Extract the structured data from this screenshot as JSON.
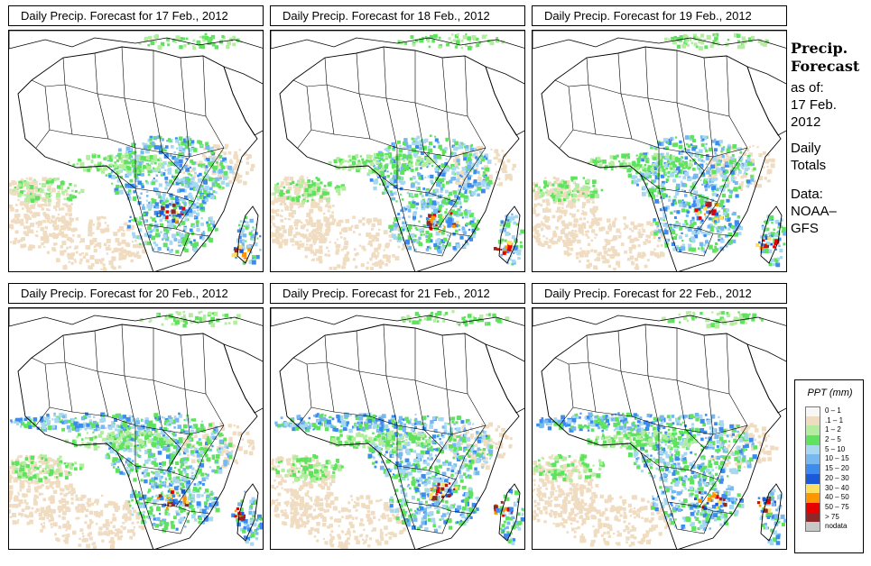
{
  "panels": [
    {
      "title": "Daily Precip. Forecast for  17 Feb., 2012"
    },
    {
      "title": "Daily Precip. Forecast for  18 Feb., 2012"
    },
    {
      "title": "Daily Precip. Forecast for  19 Feb., 2012"
    },
    {
      "title": "Daily Precip. Forecast for  20 Feb., 2012"
    },
    {
      "title": "Daily Precip. Forecast for  21 Feb., 2012"
    },
    {
      "title": "Daily Precip. Forecast for  22 Feb., 2012"
    }
  ],
  "sidebar": {
    "title1": "Precip.",
    "title2": "Forecast",
    "asof1": "as of:",
    "asof2": "17 Feb.",
    "asof3": "2012",
    "daily1": "Daily",
    "daily2": "Totals",
    "data1": "Data:",
    "data2": "NOAA–",
    "data3": "GFS"
  },
  "legend": {
    "title": "PPT (mm)",
    "items": [
      {
        "label": "0 – 1",
        "color": "#f7f7f7"
      },
      {
        "label": ".1 – 1",
        "color": "#f0dcc0"
      },
      {
        "label": "1 – 2",
        "color": "#b4eca0"
      },
      {
        "label": "2 – 5",
        "color": "#5fe35f"
      },
      {
        "label": "5 – 10",
        "color": "#a8d8f0"
      },
      {
        "label": "10 – 15",
        "color": "#78b8f0"
      },
      {
        "label": "15 – 20",
        "color": "#3c8cf0"
      },
      {
        "label": "20 – 30",
        "color": "#1a5ad8"
      },
      {
        "label": "30 – 40",
        "color": "#ffe060"
      },
      {
        "label": "40 – 50",
        "color": "#ff9600"
      },
      {
        "label": "50 – 75",
        "color": "#e60000"
      },
      {
        "label": "> 75",
        "color": "#8c2828"
      },
      {
        "label": "nodata",
        "color": "#c8c8c8"
      }
    ]
  }
}
